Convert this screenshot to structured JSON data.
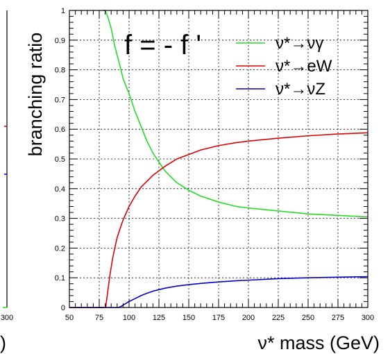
{
  "chart_data": {
    "type": "line",
    "title": "f = - f '",
    "xlabel": "ν* mass (GeV)",
    "ylabel": "branching ratio",
    "xlim": [
      50,
      300
    ],
    "ylim": [
      0,
      1
    ],
    "x_ticks": [
      "50",
      "75",
      "100",
      "125",
      "150",
      "175",
      "200",
      "225",
      "250",
      "275",
      "300"
    ],
    "y_ticks": [
      "0",
      "0.1",
      "0.2",
      "0.3",
      "0.4",
      "0.5",
      "0.6",
      "0.7",
      "0.8",
      "0.9",
      "1"
    ],
    "grid": true,
    "legend_position": "top-right",
    "series": [
      {
        "name": "ν*→νγ",
        "color": "#22dd22",
        "x": [
          78,
          80,
          82,
          85,
          88,
          90,
          92,
          95,
          100,
          105,
          110,
          115,
          120,
          125,
          130,
          140,
          150,
          160,
          175,
          190,
          200,
          225,
          250,
          275,
          300
        ],
        "y": [
          1.0,
          1.0,
          0.98,
          0.94,
          0.88,
          0.85,
          0.82,
          0.77,
          0.72,
          0.66,
          0.61,
          0.56,
          0.52,
          0.49,
          0.46,
          0.42,
          0.395,
          0.375,
          0.355,
          0.34,
          0.335,
          0.325,
          0.315,
          0.31,
          0.305
        ]
      },
      {
        "name": "ν*→eW",
        "color": "#dd0000",
        "x": [
          80.4,
          82,
          84,
          86,
          88,
          90,
          92,
          95,
          100,
          105,
          110,
          115,
          120,
          125,
          130,
          140,
          150,
          160,
          175,
          190,
          200,
          225,
          250,
          275,
          300
        ],
        "y": [
          0.0,
          0.05,
          0.11,
          0.16,
          0.2,
          0.235,
          0.26,
          0.295,
          0.34,
          0.375,
          0.405,
          0.425,
          0.445,
          0.46,
          0.475,
          0.5,
          0.515,
          0.53,
          0.545,
          0.555,
          0.56,
          0.57,
          0.578,
          0.584,
          0.588
        ]
      },
      {
        "name": "ν*→νZ",
        "color": "#0000cc",
        "x": [
          91.2,
          93,
          95,
          97,
          100,
          105,
          110,
          115,
          120,
          125,
          130,
          140,
          150,
          160,
          175,
          190,
          200,
          225,
          250,
          275,
          300
        ],
        "y": [
          0.0,
          0.003,
          0.008,
          0.013,
          0.02,
          0.03,
          0.04,
          0.048,
          0.055,
          0.06,
          0.065,
          0.072,
          0.077,
          0.081,
          0.086,
          0.09,
          0.092,
          0.097,
          0.1,
          0.102,
          0.104
        ]
      }
    ]
  },
  "left_panel_fragment": {
    "x_tick": "300",
    "xlabel_tail": ")"
  }
}
